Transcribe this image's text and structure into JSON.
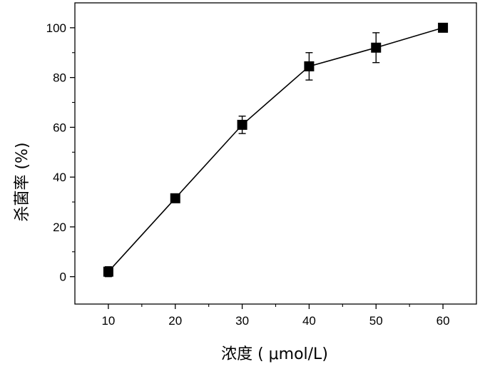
{
  "chart_data": {
    "type": "line",
    "title": "",
    "xlabel": "浓度 ( μmol/L)",
    "ylabel": "杀菌率 (%)",
    "xlim": [
      5,
      65
    ],
    "ylim": [
      -11,
      110
    ],
    "x_ticks": [
      10,
      20,
      30,
      40,
      50,
      60
    ],
    "y_ticks": [
      0,
      20,
      40,
      60,
      80,
      100
    ],
    "series": [
      {
        "marker": "square",
        "color": "#000000",
        "points": [
          {
            "x": 10,
            "y": 2,
            "err": 2
          },
          {
            "x": 20,
            "y": 31.5,
            "err": 1
          },
          {
            "x": 30,
            "y": 61,
            "err": 3.5
          },
          {
            "x": 40,
            "y": 84.5,
            "err": 5.5
          },
          {
            "x": 50,
            "y": 92,
            "err": 6
          },
          {
            "x": 60,
            "y": 100,
            "err": 1
          }
        ]
      }
    ],
    "grid": false,
    "legend": "none"
  }
}
